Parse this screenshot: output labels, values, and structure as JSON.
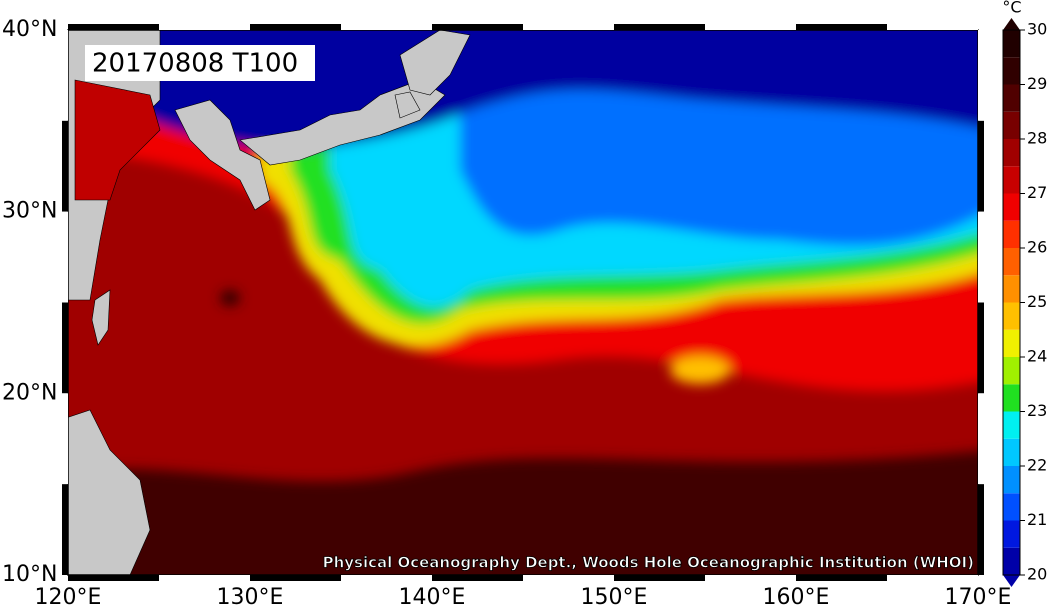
{
  "map": {
    "title": "20170808 T100",
    "credit": "Physical Oceanography Dept., Woods Hole Oceanographic Institution (WHOI)",
    "lat_labels": [
      "40°N",
      "30°N",
      "20°N",
      "10°N"
    ],
    "lon_labels": [
      "120°E",
      "130°E",
      "140°E",
      "150°E",
      "160°E",
      "170°E"
    ],
    "colorbar": {
      "label": "°C",
      "ticks": [
        20,
        21,
        22,
        23,
        24,
        25,
        26,
        27,
        28,
        29,
        30
      ],
      "colors": [
        "#0000a8",
        "#0018e0",
        "#0050ff",
        "#0090ff",
        "#00c8ff",
        "#00f0f0",
        "#20e020",
        "#a0f000",
        "#f0f000",
        "#ffc000",
        "#ff9000",
        "#ff6000",
        "#ff3000",
        "#f00000",
        "#c80000",
        "#a00000",
        "#780000",
        "#500000",
        "#300000",
        "#200000"
      ]
    }
  }
}
